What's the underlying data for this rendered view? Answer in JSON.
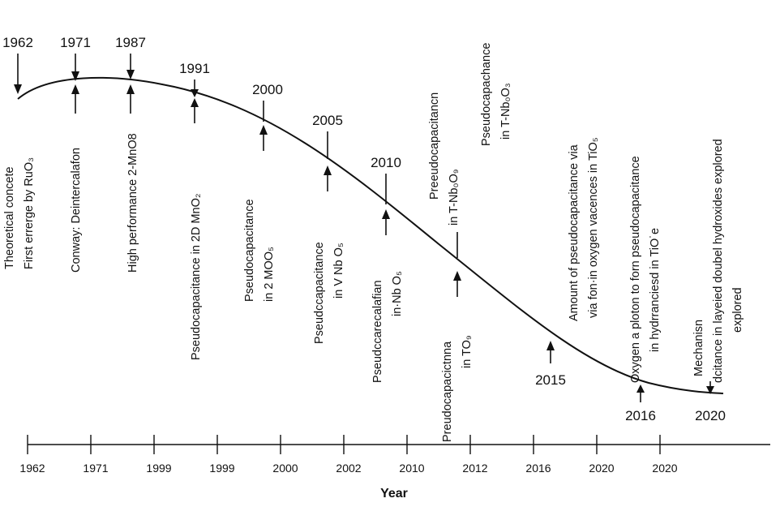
{
  "x_axis": {
    "title": "Year",
    "ticks": [
      "1962",
      "1971",
      "1999",
      "1999",
      "2000",
      "2002",
      "2010",
      "2012",
      "2016",
      "2020",
      "2020"
    ]
  },
  "events": [
    {
      "year": "1962",
      "lines": [
        "Theoretical concete",
        "First errerge by RuO₃"
      ]
    },
    {
      "year": "1971",
      "lines": [
        "Conway: Deintercalafon"
      ]
    },
    {
      "year": "1987",
      "lines": [
        "High performance 2-MnO8"
      ]
    },
    {
      "year": "1991",
      "lines": [
        "Pseudocapacitance in 2D MnO₂"
      ]
    },
    {
      "year": "2000",
      "lines": [
        "Pseudocapacitance",
        "in 2 MOO₅"
      ]
    },
    {
      "year": "2005",
      "lines": [
        "Pseudccapacitance",
        "in V Nb O₅"
      ]
    },
    {
      "year": "2010",
      "lines": [
        "Pseudccarecalafian",
        "in·Nb O₅"
      ]
    },
    {
      "year": "",
      "lines": [
        "Preudocapacictnna",
        "in TO₉"
      ]
    },
    {
      "year": "",
      "lines": [
        "Preeudocapacitancn",
        "in T-Nb₀O₉"
      ]
    },
    {
      "year": "",
      "lines": [
        "Pseudocapachance",
        "in T-Nb₀O₃"
      ]
    },
    {
      "year": "2015",
      "lines": [
        "Amount of pseudocapacitance via",
        "via fon·in oxygen vacences in TiO₅"
      ]
    },
    {
      "year": "2016",
      "lines": [
        "Oxygen a ploton to forn pseudocapacitance",
        "in hydrranciesd in TiO˙e"
      ]
    },
    {
      "year": "2020",
      "lines": [
        "Mechanisn",
        "dcitance in layeied doubel hydroxides explored",
        "explored"
      ]
    }
  ]
}
